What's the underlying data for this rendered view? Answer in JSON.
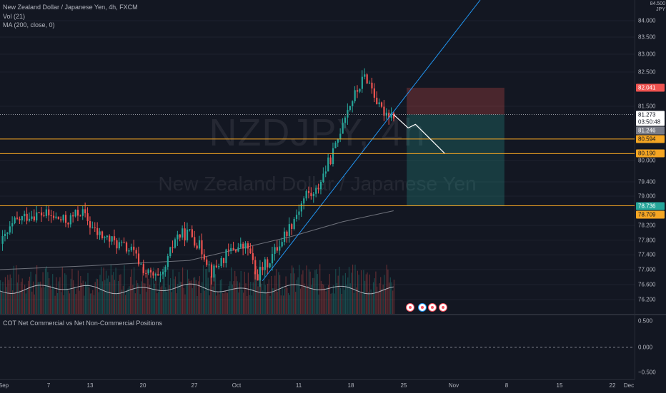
{
  "header": {
    "title": "New Zealand Dollar / Japanese Yen, 4h, FXCM",
    "vol_label": "Vol (21)",
    "ma_label": "MA (200, close, 0)"
  },
  "watermark": {
    "symbol": "NZDJPY, 4h",
    "name": "New Zealand Dollar / Japanese Yen"
  },
  "colors": {
    "background": "#131722",
    "up": "#26a69a",
    "down": "#ef5350",
    "level_line": "#f5a623",
    "trendline": "#2196f3",
    "ma": "#9598a1"
  },
  "price_axis": {
    "currency_top": "84.500",
    "currency": "JPY",
    "ticks": [
      "84.000",
      "83.500",
      "83.000",
      "82.500",
      "81.500",
      "80.000",
      "79.400",
      "79.000",
      "78.200",
      "77.800",
      "77.400",
      "77.000",
      "76.600",
      "76.200"
    ],
    "tags": {
      "stop": "82.041",
      "last": "81.273",
      "countdown": "03:50:48",
      "bid": "81.246",
      "level1": "80.594",
      "level2": "80.190",
      "target": "78.736",
      "level3": "78.709"
    }
  },
  "cot": {
    "label": "COT Net Commercial vs Net Non-Commercial Positions",
    "ticks": [
      "0.500",
      "0.000",
      "−0.500"
    ]
  },
  "time_axis": {
    "labels": [
      "Sep",
      "7",
      "13",
      "20",
      "27",
      "Oct",
      "11",
      "18",
      "25",
      "Nov",
      "8",
      "15",
      "22",
      "Dec"
    ]
  },
  "chart_data": {
    "type": "candlestick",
    "symbol": "NZDJPY",
    "interval": "4h",
    "ylim": [
      76.0,
      84.6
    ],
    "last_price": 81.273,
    "horizontal_levels": [
      80.594,
      80.19,
      78.736
    ],
    "position": {
      "entry": 81.273,
      "stop": 82.041,
      "target": 78.736
    },
    "close_path_by_date": [
      [
        "Sep 1",
        77.7
      ],
      [
        "Sep 3",
        78.3
      ],
      [
        "Sep 5",
        78.5
      ],
      [
        "Sep 7",
        78.5
      ],
      [
        "Sep 10",
        78.3
      ],
      [
        "Sep 12",
        78.6
      ],
      [
        "Sep 14",
        78.0
      ],
      [
        "Sep 17",
        77.7
      ],
      [
        "Sep 19",
        77.5
      ],
      [
        "Sep 21",
        76.9
      ],
      [
        "Sep 23",
        76.7
      ],
      [
        "Sep 25",
        77.9
      ],
      [
        "Sep 27",
        78.0
      ],
      [
        "Sep 29",
        77.4
      ],
      [
        "Sep 30",
        76.9
      ],
      [
        "Oct 1",
        77.2
      ],
      [
        "Oct 3",
        77.6
      ],
      [
        "Oct 5",
        77.6
      ],
      [
        "Oct 6",
        76.8
      ],
      [
        "Oct 8",
        77.3
      ],
      [
        "Oct 11",
        78.3
      ],
      [
        "Oct 13",
        79.1
      ],
      [
        "Oct 14",
        79.0
      ],
      [
        "Oct 15",
        79.5
      ],
      [
        "Oct 17",
        80.4
      ],
      [
        "Oct 18",
        81.2
      ],
      [
        "Oct 20",
        82.0
      ],
      [
        "Oct 21",
        82.4
      ],
      [
        "Oct 22",
        82.0
      ],
      [
        "Oct 23",
        81.4
      ],
      [
        "Oct 25",
        81.27
      ]
    ],
    "projection": [
      [
        "Oct 25",
        81.27
      ],
      [
        "Oct 27",
        80.9
      ],
      [
        "Oct 28",
        81.0
      ],
      [
        "Oct 30",
        80.6
      ],
      [
        "Nov 1",
        80.2
      ]
    ],
    "ma200": [
      [
        "Sep 1",
        77.0
      ],
      [
        "Sep 13",
        77.1
      ],
      [
        "Sep 27",
        77.25
      ],
      [
        "Oct 11",
        77.9
      ],
      [
        "Oct 18",
        78.3
      ],
      [
        "Oct 25",
        78.6
      ]
    ]
  }
}
